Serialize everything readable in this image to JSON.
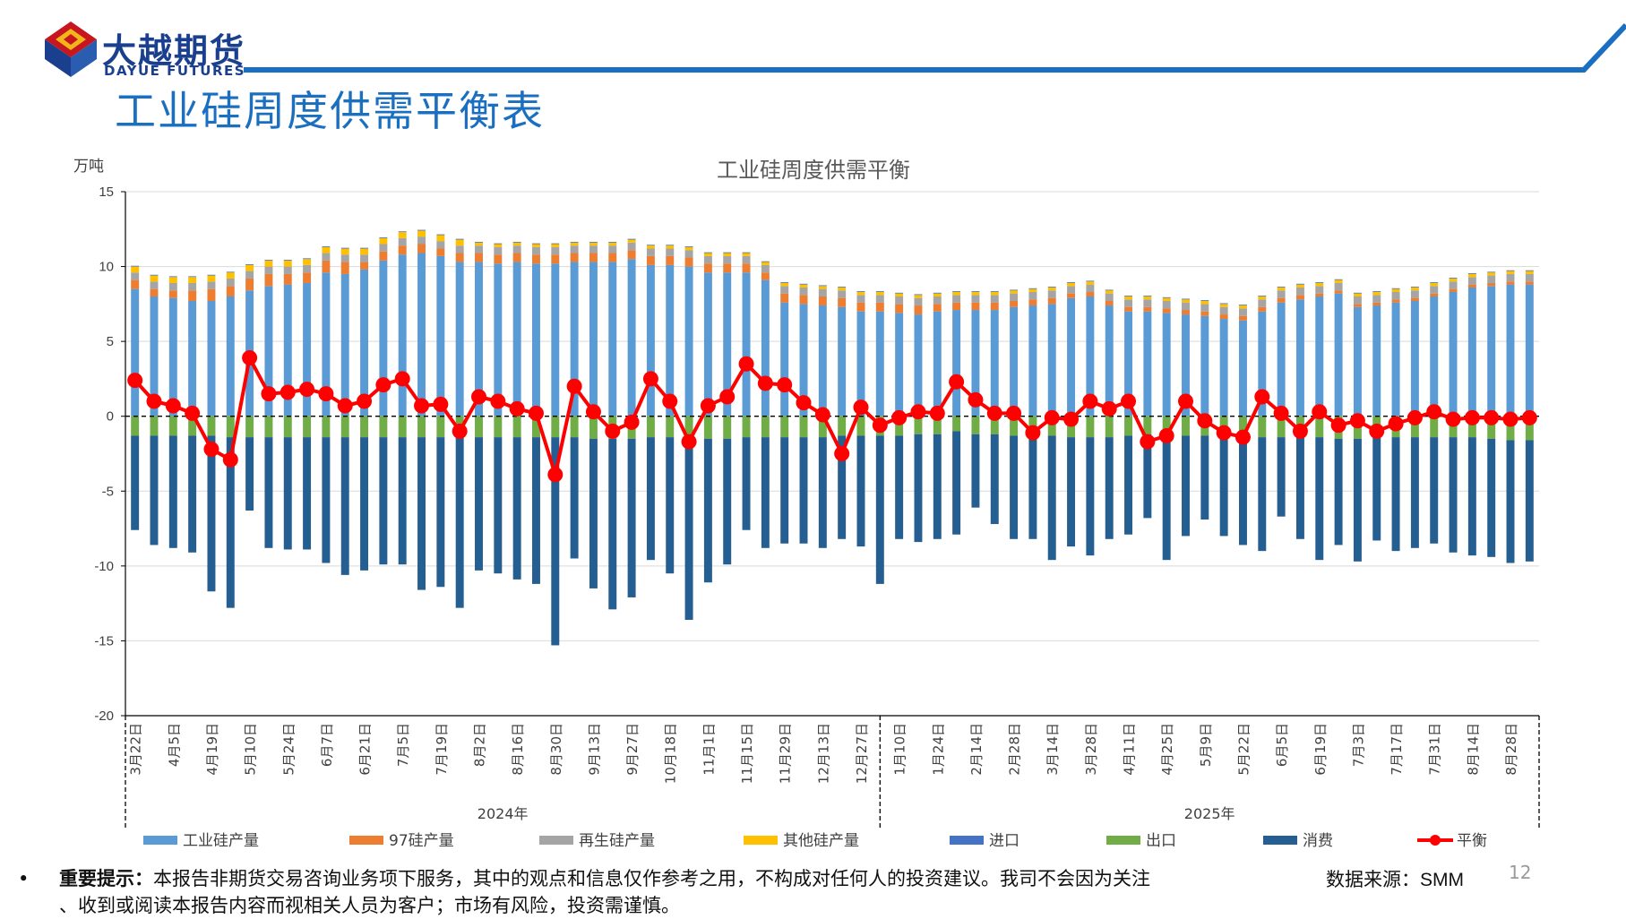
{
  "header": {
    "logo_cn": "大越期货",
    "logo_en": "DAYUE FUTURES",
    "page_title": "工业硅周度供需平衡表"
  },
  "colors": {
    "production": "#5b9bd5",
    "si97": "#ed7d31",
    "recycled": "#a5a5a5",
    "other": "#ffc000",
    "import": "#4472c4",
    "export": "#70ad47",
    "consumption": "#255e91",
    "balance": "#ff0000",
    "brand_blue": "#1b6fc2"
  },
  "chart_data": {
    "type": "bar",
    "title": "工业硅周度供需平衡",
    "ylabel": "万吨",
    "ylim": [
      -20,
      15
    ],
    "yticks": [
      15,
      10,
      5,
      0,
      -5,
      -10,
      -15,
      -20
    ],
    "grid": true,
    "legend_position": "bottom",
    "x_labels": [
      "3月22日",
      "4月5日",
      "4月19日",
      "5月10日",
      "5月24日",
      "6月7日",
      "6月21日",
      "7月5日",
      "7月19日",
      "8月2日",
      "8月16日",
      "8月30日",
      "9月13日",
      "9月27日",
      "10月18日",
      "11月1日",
      "11月15日",
      "11月29日",
      "12月13日",
      "12月27日",
      "1月10日",
      "1月24日",
      "2月14日",
      "2月28日",
      "3月14日",
      "3月28日",
      "4月11日",
      "4月25日",
      "5月9日",
      "5月22日",
      "6月5日",
      "6月19日",
      "7月3日",
      "7月17日",
      "7月31日",
      "8月14日",
      "8月28日"
    ],
    "years": [
      "2024年",
      "2025年"
    ],
    "series": [
      {
        "name": "工业硅产量",
        "values": [
          8.5,
          8.0,
          7.9,
          7.7,
          7.7,
          8.0,
          8.4,
          8.7,
          8.8,
          8.9,
          9.6,
          9.5,
          9.8,
          10.4,
          10.8,
          10.9,
          10.7,
          10.3,
          10.3,
          10.2,
          10.3,
          10.2,
          10.2,
          10.3,
          10.3,
          10.3,
          10.5,
          10.1,
          10.1,
          10.0,
          9.6,
          9.6,
          9.6,
          9.1,
          7.6,
          7.5,
          7.4,
          7.3,
          7.0,
          7.0,
          6.9,
          6.8,
          7.0,
          7.1,
          7.1,
          7.1,
          7.3,
          7.4,
          7.5,
          7.9,
          8.0,
          7.4,
          7.0,
          7.0,
          6.9,
          6.8,
          6.7,
          6.5,
          6.4,
          7.0,
          7.6,
          7.8,
          8.0,
          8.2,
          7.3,
          7.4,
          7.6,
          7.7,
          8.0,
          8.3,
          8.6,
          8.7,
          8.8,
          8.8
        ]
      },
      {
        "name": "97硅产量",
        "values": [
          0.6,
          0.5,
          0.5,
          0.7,
          0.8,
          0.7,
          0.8,
          0.8,
          0.7,
          0.7,
          0.8,
          0.8,
          0.5,
          0.6,
          0.6,
          0.6,
          0.5,
          0.6,
          0.6,
          0.6,
          0.6,
          0.6,
          0.6,
          0.6,
          0.6,
          0.6,
          0.6,
          0.6,
          0.6,
          0.6,
          0.6,
          0.6,
          0.6,
          0.5,
          0.6,
          0.6,
          0.6,
          0.6,
          0.6,
          0.6,
          0.6,
          0.6,
          0.5,
          0.5,
          0.5,
          0.5,
          0.4,
          0.4,
          0.4,
          0.3,
          0.3,
          0.3,
          0.3,
          0.3,
          0.3,
          0.3,
          0.3,
          0.3,
          0.3,
          0.3,
          0.3,
          0.3,
          0.2,
          0.2,
          0.2,
          0.2,
          0.2,
          0.2,
          0.2,
          0.2,
          0.2,
          0.2,
          0.2,
          0.2
        ]
      },
      {
        "name": "再生硅产量",
        "values": [
          0.5,
          0.5,
          0.5,
          0.5,
          0.5,
          0.5,
          0.5,
          0.5,
          0.5,
          0.5,
          0.5,
          0.5,
          0.5,
          0.5,
          0.5,
          0.5,
          0.5,
          0.5,
          0.5,
          0.5,
          0.5,
          0.5,
          0.5,
          0.5,
          0.5,
          0.5,
          0.5,
          0.5,
          0.5,
          0.5,
          0.5,
          0.5,
          0.5,
          0.5,
          0.5,
          0.5,
          0.5,
          0.5,
          0.5,
          0.5,
          0.5,
          0.5,
          0.5,
          0.5,
          0.5,
          0.5,
          0.5,
          0.5,
          0.5,
          0.5,
          0.5,
          0.5,
          0.5,
          0.5,
          0.5,
          0.5,
          0.5,
          0.5,
          0.5,
          0.5,
          0.5,
          0.5,
          0.5,
          0.5,
          0.5,
          0.5,
          0.5,
          0.5,
          0.5,
          0.5,
          0.5,
          0.5,
          0.5,
          0.5
        ]
      },
      {
        "name": "其他硅产量",
        "values": [
          0.4,
          0.4,
          0.4,
          0.4,
          0.4,
          0.4,
          0.4,
          0.4,
          0.4,
          0.4,
          0.4,
          0.4,
          0.4,
          0.4,
          0.4,
          0.4,
          0.4,
          0.4,
          0.2,
          0.2,
          0.2,
          0.2,
          0.2,
          0.2,
          0.2,
          0.2,
          0.2,
          0.2,
          0.2,
          0.2,
          0.2,
          0.2,
          0.2,
          0.2,
          0.2,
          0.2,
          0.2,
          0.2,
          0.2,
          0.2,
          0.2,
          0.2,
          0.2,
          0.2,
          0.2,
          0.2,
          0.2,
          0.2,
          0.2,
          0.2,
          0.2,
          0.2,
          0.2,
          0.2,
          0.2,
          0.2,
          0.2,
          0.2,
          0.2,
          0.2,
          0.2,
          0.2,
          0.2,
          0.2,
          0.2,
          0.2,
          0.2,
          0.2,
          0.2,
          0.2,
          0.2,
          0.2,
          0.2,
          0.2
        ]
      },
      {
        "name": "进口",
        "values": [
          0.05,
          0.05,
          0.05,
          0.05,
          0.05,
          0.05,
          0.05,
          0.05,
          0.05,
          0.05,
          0.05,
          0.05,
          0.05,
          0.05,
          0.05,
          0.05,
          0.05,
          0.05,
          0.05,
          0.05,
          0.05,
          0.05,
          0.05,
          0.05,
          0.05,
          0.05,
          0.05,
          0.05,
          0.05,
          0.05,
          0.05,
          0.05,
          0.05,
          0.05,
          0.05,
          0.05,
          0.05,
          0.05,
          0.05,
          0.05,
          0.05,
          0.05,
          0.05,
          0.05,
          0.05,
          0.05,
          0.05,
          0.05,
          0.05,
          0.05,
          0.05,
          0.05,
          0.05,
          0.05,
          0.05,
          0.05,
          0.05,
          0.05,
          0.05,
          0.05,
          0.05,
          0.05,
          0.05,
          0.05,
          0.05,
          0.05,
          0.05,
          0.05,
          0.05,
          0.05,
          0.05,
          0.05,
          0.05,
          0.05
        ]
      },
      {
        "name": "出口",
        "values": [
          -1.3,
          -1.3,
          -1.3,
          -1.3,
          -1.3,
          -1.4,
          -1.4,
          -1.4,
          -1.4,
          -1.4,
          -1.4,
          -1.4,
          -1.4,
          -1.4,
          -1.4,
          -1.4,
          -1.4,
          -1.4,
          -1.4,
          -1.4,
          -1.4,
          -1.4,
          -1.4,
          -1.4,
          -1.5,
          -1.5,
          -1.5,
          -1.4,
          -1.4,
          -1.4,
          -1.5,
          -1.5,
          -1.4,
          -1.4,
          -1.4,
          -1.4,
          -1.4,
          -1.3,
          -1.3,
          -1.3,
          -1.3,
          -1.2,
          -1.2,
          -1.0,
          -1.2,
          -1.2,
          -1.3,
          -1.3,
          -1.3,
          -1.4,
          -1.4,
          -1.4,
          -1.3,
          -1.2,
          -1.2,
          -1.3,
          -1.3,
          -1.3,
          -1.4,
          -1.4,
          -1.4,
          -1.4,
          -1.4,
          -1.5,
          -1.5,
          -1.4,
          -1.4,
          -1.4,
          -1.4,
          -1.4,
          -1.4,
          -1.5,
          -1.6,
          -1.6
        ]
      },
      {
        "name": "消费",
        "values": [
          -6.3,
          -7.3,
          -7.5,
          -7.8,
          -10.4,
          -11.4,
          -4.9,
          -7.4,
          -7.5,
          -7.5,
          -8.4,
          -9.2,
          -8.9,
          -8.5,
          -8.5,
          -10.2,
          -10.0,
          -11.4,
          -8.9,
          -9.1,
          -9.5,
          -9.8,
          -13.9,
          -8.1,
          -10.0,
          -11.4,
          -10.6,
          -8.2,
          -9.1,
          -12.2,
          -9.6,
          -8.4,
          -6.2,
          -7.4,
          -7.1,
          -7.1,
          -7.4,
          -6.9,
          -7.4,
          -9.9,
          -6.9,
          -7.2,
          -7.0,
          -6.9,
          -4.9,
          -6.0,
          -6.9,
          -6.9,
          -8.3,
          -7.3,
          -7.9,
          -6.8,
          -6.6,
          -5.6,
          -8.4,
          -6.7,
          -5.6,
          -6.7,
          -7.2,
          -7.6,
          -5.3,
          -6.8,
          -8.2,
          -7.1,
          -8.2,
          -6.9,
          -7.6,
          -7.4,
          -7.1,
          -7.7,
          -7.9,
          -7.9,
          -8.2,
          -8.1
        ]
      },
      {
        "name": "平衡",
        "values": [
          2.4,
          1.0,
          0.7,
          0.2,
          -2.2,
          -2.9,
          3.9,
          1.5,
          1.6,
          1.8,
          1.5,
          0.7,
          1.0,
          2.1,
          2.5,
          0.7,
          0.8,
          -1.0,
          1.3,
          1.0,
          0.5,
          0.2,
          -3.9,
          2.0,
          0.3,
          -1.0,
          -0.4,
          2.5,
          1.0,
          -1.7,
          0.7,
          1.3,
          3.5,
          2.2,
          2.1,
          0.9,
          0.1,
          -2.5,
          0.6,
          -0.6,
          -0.1,
          0.3,
          0.2,
          2.3,
          1.1,
          0.2,
          0.2,
          -1.1,
          -0.1,
          -0.2,
          1.0,
          0.5,
          1.0,
          -1.7,
          -1.3,
          1.0,
          -0.3,
          -1.1,
          -1.4,
          1.3,
          0.2,
          -1.0,
          0.3,
          -0.6,
          -0.3,
          -1.0,
          -0.5,
          -0.1,
          0.3,
          -0.2,
          -0.1,
          -0.1,
          -0.2,
          -0.1
        ]
      }
    ]
  },
  "footer": {
    "bullet": "•",
    "notice_label": "重要提示：",
    "notice_line1": "本报告非期货交易咨询业务项下服务，其中的观点和信息仅作参考之用，不构成对任何人的投资建议。我司不会因为关注",
    "notice_line2": "、收到或阅读本报告内容而视相关人员为客户；市场有风险，投资需谨慎。",
    "source_label": "数据来源：",
    "source_value": "SMM",
    "page_number": "12"
  }
}
